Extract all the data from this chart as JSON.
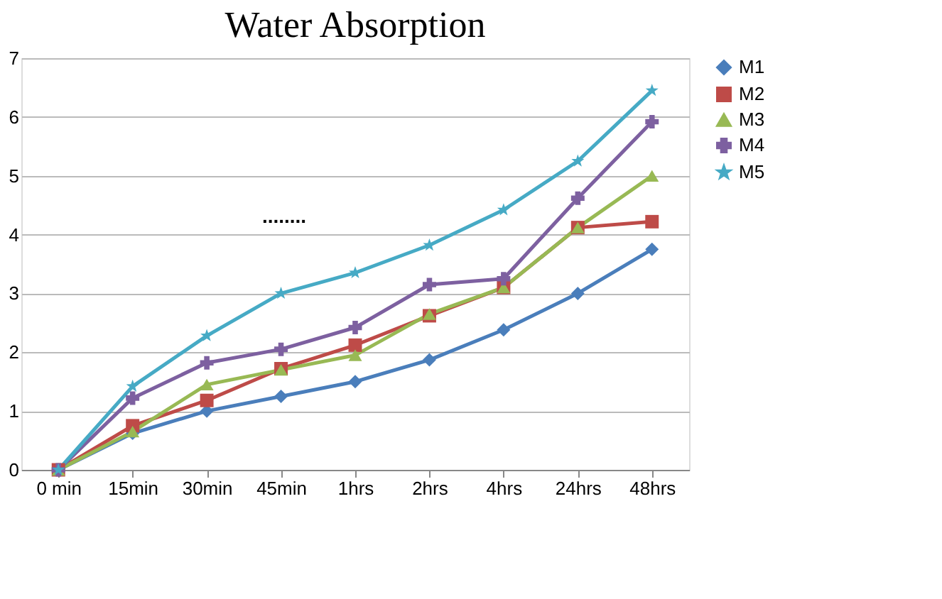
{
  "chart_data": {
    "type": "line",
    "title": "Water Absorption",
    "categories": [
      "0 min",
      "15min",
      "30min",
      "45min",
      "1hrs",
      "2hrs",
      "4hrs",
      "24hrs",
      "48hrs"
    ],
    "series": [
      {
        "name": "M1",
        "color": "#4a7ebb",
        "marker": "diamond",
        "values": [
          0,
          0.62,
          1.0,
          1.25,
          1.5,
          1.87,
          2.38,
          3.0,
          3.75
        ]
      },
      {
        "name": "M2",
        "color": "#be4b48",
        "marker": "square",
        "values": [
          0,
          0.75,
          1.18,
          1.72,
          2.12,
          2.62,
          3.1,
          4.12,
          4.22
        ]
      },
      {
        "name": "M3",
        "color": "#98b954",
        "marker": "triangle",
        "values": [
          0,
          0.65,
          1.45,
          1.7,
          1.95,
          2.65,
          3.1,
          4.12,
          5.0
        ]
      },
      {
        "name": "M4",
        "color": "#7d60a0",
        "marker": "cross",
        "values": [
          0,
          1.22,
          1.82,
          2.05,
          2.42,
          3.15,
          3.25,
          4.62,
          5.92
        ]
      },
      {
        "name": "M5",
        "color": "#46aac5",
        "marker": "star",
        "values": [
          0,
          1.42,
          2.28,
          3.0,
          3.35,
          3.82,
          4.42,
          5.25,
          6.45
        ]
      }
    ],
    "ylim": [
      0,
      7
    ],
    "yticks": [
      0,
      1,
      2,
      3,
      4,
      5,
      6,
      7
    ],
    "grid": "y",
    "legend": "right",
    "annotations": [
      "........"
    ]
  }
}
